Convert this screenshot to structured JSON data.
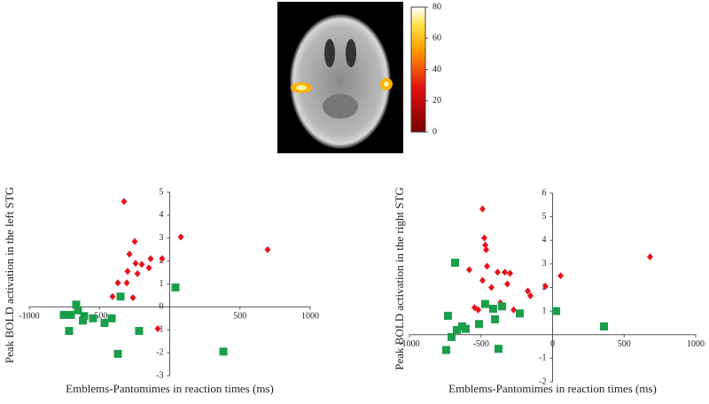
{
  "chart_data": [
    {
      "type": "colorbar",
      "ylim": [
        0,
        80
      ],
      "yticks": [
        0,
        20,
        40,
        60,
        80
      ]
    },
    {
      "type": "scatter",
      "xlabel": "Emblems-Pantomimes in reaction times (ms)",
      "ylabel": "Peak BOLD activation in the left STG",
      "xlim": [
        -1000,
        1000
      ],
      "ylim": [
        -3,
        5
      ],
      "xticks": [
        -1000,
        -500,
        500,
        1000
      ],
      "yticks": [
        -3,
        -2,
        -1,
        0,
        1,
        2,
        3,
        4,
        5
      ],
      "series": [
        {
          "color": "#e8141c",
          "marker": "diamond",
          "x": [
            -325,
            -249,
            -287,
            -243,
            -300,
            -230,
            -199,
            -148,
            -136,
            -54,
            79,
            697,
            -369,
            -306,
            -262,
            -407,
            -85
          ],
          "values": [
            4.6,
            2.85,
            2.3,
            1.9,
            1.55,
            1.45,
            1.85,
            1.7,
            2.1,
            2.1,
            3.05,
            2.5,
            1.05,
            1.05,
            0.4,
            0.45,
            -0.95
          ]
        },
        {
          "color": "#1a9e4a",
          "marker": "square",
          "x": [
            -666,
            -754,
            -703,
            -653,
            -609,
            -716,
            -618,
            -546,
            -464,
            -350,
            -413,
            -218,
            -369,
            41,
            382
          ],
          "values": [
            0.1,
            -0.35,
            -0.35,
            -0.15,
            -0.4,
            -1.05,
            -0.6,
            -0.5,
            -0.7,
            0.45,
            -0.5,
            -1.05,
            -2.05,
            0.85,
            -1.95
          ]
        }
      ]
    },
    {
      "type": "scatter",
      "xlabel": "Emblems-Pantomimes in reaction times (ms)",
      "ylabel": "Peak BOLD activation in the right STG",
      "xlim": [
        -1000,
        1000
      ],
      "ylim": [
        -2,
        6
      ],
      "xticks": [
        -1000,
        -500,
        0,
        500,
        1000
      ],
      "yticks": [
        -2,
        -1,
        1,
        2,
        3,
        4,
        5,
        6
      ],
      "series": [
        {
          "color": "#e8141c",
          "marker": "diamond",
          "x": [
            -489,
            -477,
            -470,
            -464,
            -582,
            -458,
            -384,
            -334,
            -297,
            -489,
            -427,
            -316,
            -173,
            -155,
            -50,
            56,
            -545,
            -520,
            -272,
            681,
            -365
          ],
          "values": [
            5.33,
            4.1,
            3.8,
            3.6,
            2.75,
            2.9,
            2.65,
            2.65,
            2.6,
            2.3,
            2.0,
            2.15,
            1.85,
            1.65,
            2.05,
            2.5,
            1.15,
            1.05,
            1.05,
            3.3,
            1.35
          ]
        },
        {
          "color": "#1a9e4a",
          "marker": "square",
          "x": [
            -681,
            -731,
            -706,
            -743,
            -669,
            -632,
            -607,
            -471,
            -415,
            -353,
            -402,
            -514,
            -378,
            -229,
            25,
            359
          ],
          "values": [
            3.05,
            0.8,
            -0.1,
            -0.65,
            0.2,
            0.35,
            0.25,
            1.3,
            1.1,
            1.2,
            0.65,
            0.45,
            -0.6,
            0.9,
            1.0,
            0.35
          ]
        }
      ]
    }
  ]
}
